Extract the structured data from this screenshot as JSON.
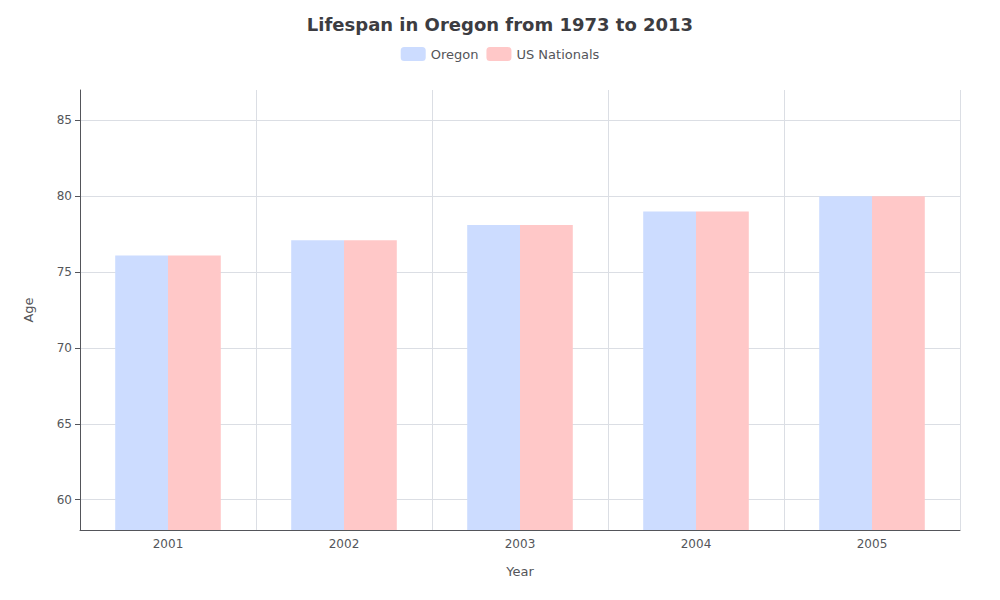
{
  "chart_data": {
    "type": "bar",
    "title": "Lifespan in Oregon from 1973 to 2013",
    "xlabel": "Year",
    "ylabel": "Age",
    "categories": [
      "2001",
      "2002",
      "2003",
      "2004",
      "2005"
    ],
    "series": [
      {
        "name": "Oregon",
        "color": "#ccdcff",
        "values": [
          76.1,
          77.1,
          78.1,
          79.0,
          80.0
        ]
      },
      {
        "name": "US Nationals",
        "color": "#ffc8c8",
        "values": [
          76.1,
          77.1,
          78.1,
          79.0,
          80.0
        ]
      }
    ],
    "ylim": [
      58,
      87
    ],
    "yticks": [
      60,
      65,
      70,
      75,
      80,
      85
    ],
    "grid": true,
    "legend": "top"
  }
}
